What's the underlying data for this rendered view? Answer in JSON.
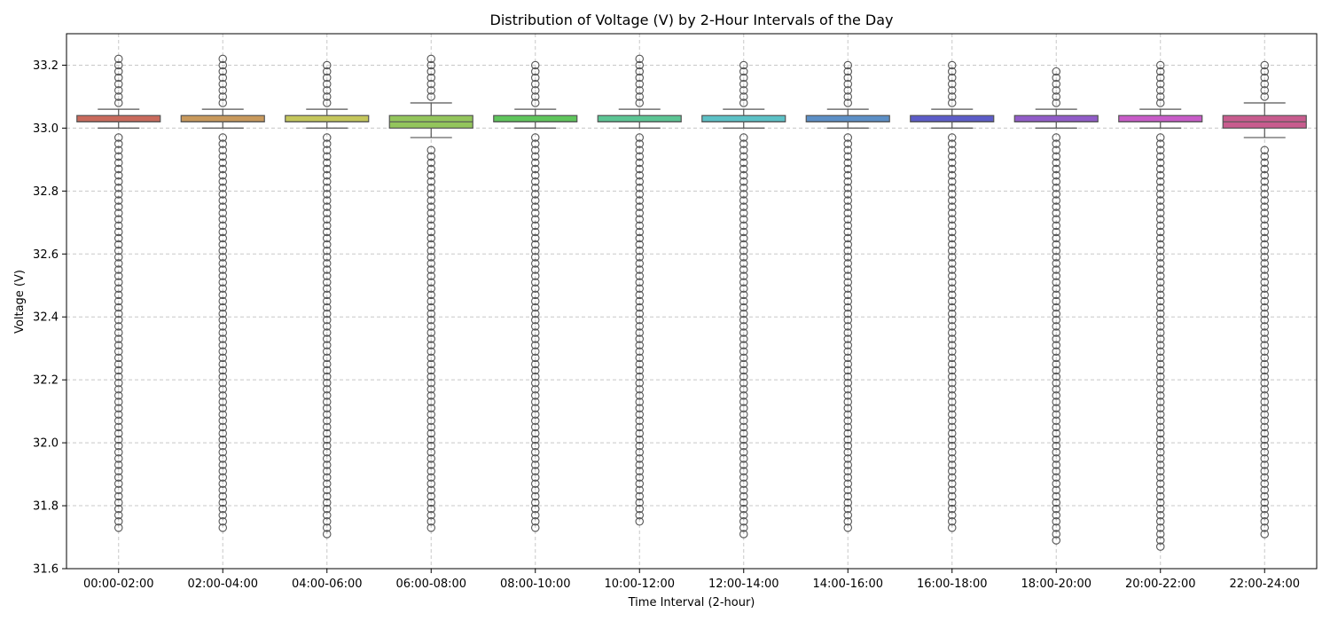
{
  "chart_data": {
    "type": "box",
    "title": "Distribution of Voltage (V) by 2-Hour Intervals of the Day",
    "xlabel": "Time Interval (2-hour)",
    "ylabel": "Voltage (V)",
    "ylim": [
      31.6,
      33.3
    ],
    "yticks": [
      31.6,
      31.8,
      32.0,
      32.2,
      32.4,
      32.6,
      32.8,
      33.0,
      33.2
    ],
    "ytick_labels": [
      "31.6",
      "31.8",
      "32.0",
      "32.2",
      "32.4",
      "32.6",
      "32.8",
      "33.0",
      "33.2"
    ],
    "grid": true,
    "categories": [
      "00:00-02:00",
      "02:00-04:00",
      "04:00-06:00",
      "06:00-08:00",
      "08:00-10:00",
      "10:00-12:00",
      "12:00-14:00",
      "14:00-16:00",
      "16:00-18:00",
      "18:00-20:00",
      "20:00-22:00",
      "22:00-24:00"
    ],
    "colors": [
      "#c96a5c",
      "#c8995c",
      "#c4c65c",
      "#93c55c",
      "#5fc55c",
      "#5cc594",
      "#5cc1c6",
      "#5c8fc6",
      "#5c5cc8",
      "#915cc8",
      "#c85cc8",
      "#c85c8e"
    ],
    "boxes": [
      {
        "q1": 33.02,
        "median": 33.02,
        "q3": 33.04,
        "whislo": 33.0,
        "whishi": 33.06,
        "outlier_min": 31.73,
        "outlier_max": 33.22
      },
      {
        "q1": 33.02,
        "median": 33.02,
        "q3": 33.04,
        "whislo": 33.0,
        "whishi": 33.06,
        "outlier_min": 31.73,
        "outlier_max": 33.22
      },
      {
        "q1": 33.02,
        "median": 33.02,
        "q3": 33.04,
        "whislo": 33.0,
        "whishi": 33.06,
        "outlier_min": 31.71,
        "outlier_max": 33.21
      },
      {
        "q1": 33.0,
        "median": 33.02,
        "q3": 33.04,
        "whislo": 32.97,
        "whishi": 33.08,
        "outlier_min": 31.73,
        "outlier_max": 33.22
      },
      {
        "q1": 33.02,
        "median": 33.02,
        "q3": 33.04,
        "whislo": 33.0,
        "whishi": 33.06,
        "outlier_min": 31.73,
        "outlier_max": 33.21
      },
      {
        "q1": 33.02,
        "median": 33.02,
        "q3": 33.04,
        "whislo": 33.0,
        "whishi": 33.06,
        "outlier_min": 31.75,
        "outlier_max": 33.22
      },
      {
        "q1": 33.02,
        "median": 33.02,
        "q3": 33.04,
        "whislo": 33.0,
        "whishi": 33.06,
        "outlier_min": 31.71,
        "outlier_max": 33.21
      },
      {
        "q1": 33.02,
        "median": 33.02,
        "q3": 33.04,
        "whislo": 33.0,
        "whishi": 33.06,
        "outlier_min": 31.73,
        "outlier_max": 33.21
      },
      {
        "q1": 33.02,
        "median": 33.02,
        "q3": 33.04,
        "whislo": 33.0,
        "whishi": 33.06,
        "outlier_min": 31.73,
        "outlier_max": 33.21
      },
      {
        "q1": 33.02,
        "median": 33.02,
        "q3": 33.04,
        "whislo": 33.0,
        "whishi": 33.06,
        "outlier_min": 31.69,
        "outlier_max": 33.19
      },
      {
        "q1": 33.02,
        "median": 33.02,
        "q3": 33.04,
        "whislo": 33.0,
        "whishi": 33.06,
        "outlier_min": 31.67,
        "outlier_max": 33.21
      },
      {
        "q1": 33.0,
        "median": 33.02,
        "q3": 33.04,
        "whislo": 32.97,
        "whishi": 33.08,
        "outlier_min": 31.71,
        "outlier_max": 33.21
      }
    ]
  }
}
